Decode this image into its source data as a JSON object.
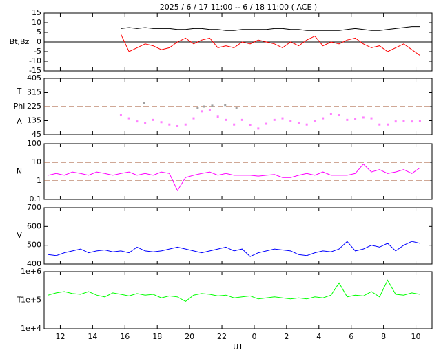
{
  "chart_data": [
    {
      "type": "line",
      "title": "2025 /  6 / 17   11:00 --  6 / 18   11:00 ( ACE )",
      "ylabel": [
        "Bt,Bz"
      ],
      "xlim": [
        11,
        35
      ],
      "ylim": [
        -15,
        15
      ],
      "yticks": [
        15,
        10,
        5,
        0,
        -5,
        -10,
        -15
      ],
      "hlines": [
        0
      ],
      "hline_style": "solid",
      "hline_color": "#000000",
      "x": [
        15.75,
        16.25,
        16.75,
        17.25,
        17.75,
        18.25,
        18.75,
        19.25,
        19.75,
        20.25,
        20.75,
        21.25,
        21.75,
        22.25,
        22.75,
        23.25,
        23.75,
        24.25,
        24.75,
        25.25,
        25.75,
        26.25,
        26.75,
        27.25,
        27.75,
        28.25,
        28.75,
        29.25,
        29.75,
        30.25,
        30.75,
        31.25,
        31.75,
        32.25,
        32.75,
        33.25,
        33.75,
        34.25
      ],
      "series": [
        {
          "name": "Bt",
          "color": "#000000",
          "values": [
            7,
            7.5,
            7,
            7.5,
            7,
            7,
            7,
            6.5,
            6.5,
            7,
            7,
            6.5,
            6.5,
            6,
            6,
            6.5,
            6.5,
            6.5,
            6.5,
            7,
            7,
            6.5,
            6.5,
            6,
            6,
            6,
            6,
            6,
            6.5,
            7,
            6.5,
            6,
            6,
            6.5,
            7,
            7.5,
            8,
            8
          ]
        },
        {
          "name": "Bz",
          "color": "#ff0000",
          "values": [
            4,
            -5,
            -3,
            -1,
            -2,
            -4,
            -3,
            0,
            2,
            -1,
            1,
            2,
            -3,
            -2,
            -3,
            0,
            -1,
            1,
            0,
            -1,
            -3,
            0,
            -2,
            1,
            3,
            -2,
            0,
            -1,
            1,
            2,
            -1,
            -3,
            -2,
            -5,
            -3,
            -1,
            -4,
            -7
          ]
        }
      ]
    },
    {
      "type": "scatter",
      "ylabel": [
        "T",
        "Phi",
        "A"
      ],
      "xlim": [
        11,
        35
      ],
      "ylim": [
        45,
        405
      ],
      "yticks": [
        405,
        315,
        225,
        135,
        45
      ],
      "hlines": [
        225
      ],
      "hline_style": "dashed",
      "hline_color": "#a0522d",
      "series": [
        {
          "name": "Phi",
          "color": "#ff80ff",
          "x": [
            15.75,
            16.25,
            16.75,
            17.25,
            17.75,
            18.25,
            18.75,
            19.25,
            19.75,
            20.25,
            20.75,
            21.25,
            21.75,
            22.25,
            22.75,
            23.25,
            23.75,
            24.25,
            24.75,
            25.25,
            25.75,
            26.25,
            26.75,
            27.25,
            27.75,
            28.25,
            28.75,
            29.25,
            29.75,
            30.25,
            30.75,
            31.25,
            31.75,
            32.25,
            32.75,
            33.25,
            33.75,
            34.25
          ],
          "values": [
            170,
            150,
            130,
            120,
            140,
            125,
            110,
            100,
            110,
            150,
            195,
            205,
            160,
            140,
            110,
            140,
            105,
            85,
            115,
            140,
            150,
            135,
            120,
            110,
            135,
            150,
            175,
            170,
            140,
            145,
            155,
            150,
            110,
            110,
            130,
            135,
            130,
            135
          ]
        },
        {
          "name": "Theta",
          "color": "#a0a0a0",
          "x": [
            17.2,
            20.5,
            20.9,
            21.4,
            22.2,
            22.9
          ],
          "values": [
            245,
            215,
            225,
            230,
            235,
            215
          ]
        }
      ]
    },
    {
      "type": "line",
      "ylabel": [
        "N"
      ],
      "log": true,
      "xlim": [
        11,
        35
      ],
      "ylim": [
        0.1,
        100
      ],
      "yticks": [
        100,
        10,
        1,
        0.1
      ],
      "hlines": [
        10,
        1
      ],
      "hline_style": "dashed",
      "hline_color": "#a0522d",
      "x": [
        11.25,
        11.75,
        12.25,
        12.75,
        13.25,
        13.75,
        14.25,
        14.75,
        15.25,
        15.75,
        16.25,
        16.75,
        17.25,
        17.75,
        18.25,
        18.75,
        19.25,
        19.75,
        20.25,
        20.75,
        21.25,
        21.75,
        22.25,
        22.75,
        23.25,
        23.75,
        24.25,
        24.75,
        25.25,
        25.75,
        26.25,
        26.75,
        27.25,
        27.75,
        28.25,
        28.75,
        29.25,
        29.75,
        30.25,
        30.75,
        31.25,
        31.75,
        32.25,
        32.75,
        33.25,
        33.75,
        34.25
      ],
      "series": [
        {
          "name": "N",
          "color": "#ff00ff",
          "values": [
            2,
            2.5,
            2,
            3,
            2.5,
            2,
            3,
            2.5,
            2,
            2.5,
            3,
            2,
            2.5,
            2,
            3,
            2.5,
            0.3,
            1.5,
            2,
            2.5,
            3,
            2,
            2.5,
            2,
            2,
            2,
            1.8,
            2,
            2.2,
            1.5,
            1.5,
            2,
            2.5,
            2,
            3,
            2,
            2,
            2,
            2.5,
            8,
            3,
            4,
            2.5,
            3,
            4,
            2.5,
            5
          ]
        }
      ]
    },
    {
      "type": "line",
      "ylabel": [
        "V"
      ],
      "xlim": [
        11,
        35
      ],
      "ylim": [
        400,
        700
      ],
      "yticks": [
        700,
        600,
        500,
        400
      ],
      "x": [
        11.25,
        11.75,
        12.25,
        12.75,
        13.25,
        13.75,
        14.25,
        14.75,
        15.25,
        15.75,
        16.25,
        16.75,
        17.25,
        17.75,
        18.25,
        18.75,
        19.25,
        19.75,
        20.25,
        20.75,
        21.25,
        21.75,
        22.25,
        22.75,
        23.25,
        23.75,
        24.25,
        24.75,
        25.25,
        25.75,
        26.25,
        26.75,
        27.25,
        27.75,
        28.25,
        28.75,
        29.25,
        29.75,
        30.25,
        30.75,
        31.25,
        31.75,
        32.25,
        32.75,
        33.25,
        33.75,
        34.25
      ],
      "series": [
        {
          "name": "V",
          "color": "#0000ff",
          "values": [
            450,
            445,
            460,
            470,
            480,
            460,
            470,
            475,
            465,
            470,
            460,
            490,
            470,
            465,
            470,
            480,
            490,
            480,
            470,
            460,
            470,
            480,
            490,
            470,
            480,
            440,
            460,
            470,
            480,
            475,
            470,
            450,
            445,
            460,
            470,
            465,
            480,
            520,
            470,
            480,
            500,
            490,
            510,
            470,
            500,
            520,
            510
          ]
        }
      ]
    },
    {
      "type": "line",
      "ylabel": [
        "T"
      ],
      "log": true,
      "xlabel": "UT",
      "xlim": [
        11,
        35
      ],
      "ylim": [
        10000,
        1000000
      ],
      "yticks": [
        {
          "value": 1000000,
          "label": "1e+6"
        },
        {
          "value": 100000,
          "label": "1e+5"
        },
        {
          "value": 10000,
          "label": "1e+4"
        }
      ],
      "hlines": [
        100000
      ],
      "hline_style": "dashed",
      "hline_color": "#a0522d",
      "xticks": [
        12,
        14,
        16,
        18,
        20,
        22,
        {
          "value": 24,
          "label": "0"
        },
        {
          "value": 26,
          "label": "2"
        },
        {
          "value": 28,
          "label": "4"
        },
        {
          "value": 30,
          "label": "6"
        },
        {
          "value": 32,
          "label": "8"
        },
        {
          "value": 34,
          "label": "10"
        }
      ],
      "x": [
        11.25,
        11.75,
        12.25,
        12.75,
        13.25,
        13.75,
        14.25,
        14.75,
        15.25,
        15.75,
        16.25,
        16.75,
        17.25,
        17.75,
        18.25,
        18.75,
        19.25,
        19.75,
        20.25,
        20.75,
        21.25,
        21.75,
        22.25,
        22.75,
        23.25,
        23.75,
        24.25,
        24.75,
        25.25,
        25.75,
        26.25,
        26.75,
        27.25,
        27.75,
        28.25,
        28.75,
        29.25,
        29.75,
        30.25,
        30.75,
        31.25,
        31.75,
        32.25,
        32.75,
        33.25,
        33.75,
        34.25
      ],
      "series": [
        {
          "name": "T",
          "color": "#00ff00",
          "values": [
            150000,
            180000,
            200000,
            170000,
            160000,
            200000,
            150000,
            130000,
            180000,
            160000,
            140000,
            170000,
            150000,
            160000,
            120000,
            140000,
            130000,
            90000,
            150000,
            170000,
            160000,
            140000,
            150000,
            120000,
            130000,
            140000,
            110000,
            120000,
            130000,
            120000,
            110000,
            120000,
            110000,
            130000,
            120000,
            150000,
            400000,
            130000,
            150000,
            140000,
            200000,
            130000,
            500000,
            160000,
            150000,
            180000,
            160000
          ]
        }
      ]
    }
  ]
}
